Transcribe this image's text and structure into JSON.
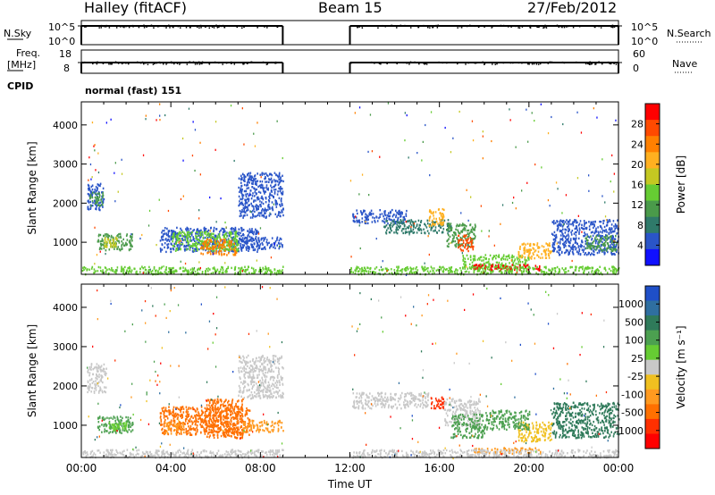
{
  "header": {
    "station": "Halley (fitACF)",
    "beam": "Beam 15",
    "date": "27/Feb/2012"
  },
  "strip_labels": {
    "nsky": "N.Sky",
    "nsky_ticks": [
      "10^5",
      "10^0"
    ],
    "nsearch": "N.Search",
    "nsearch_ticks": [
      "10^5",
      "10^0"
    ],
    "freq_line1": "Freq.",
    "freq_line2": "[MHz]",
    "freq_ticks": [
      "18",
      "8"
    ],
    "nave": "Nave",
    "nave_ticks": [
      "60",
      "0"
    ],
    "cpid": "CPID",
    "cpid_text": "normal (fast) 151"
  },
  "chart_data": [
    {
      "type": "heatmap",
      "name_panel": "power",
      "ylabel": "Slant Range [km]",
      "xlabel": "",
      "ylim": [
        180,
        4590
      ],
      "yticks": [
        1000,
        2000,
        3000,
        4000
      ],
      "colorbar_label": "Power [dB]",
      "colorbar_ticks": [
        "4",
        "8",
        "12",
        "16",
        "20",
        "24",
        "28"
      ],
      "colorbar_colors": [
        "#1010ff",
        "#2a55c8",
        "#2f7a6a",
        "#4a9a4a",
        "#66cc33",
        "#c4c822",
        "#ffb020",
        "#ff8000",
        "#ff4a00",
        "#ff0000"
      ],
      "scatter_patches": [
        {
          "t": [
            0.25,
            1.0
          ],
          "r": [
            1850,
            2550
          ],
          "color": "#2a55c8"
        },
        {
          "t": [
            0.35,
            0.95
          ],
          "r": [
            1950,
            2300
          ],
          "color": "#4a9a4a"
        },
        {
          "t": [
            0.7,
            2.3
          ],
          "r": [
            820,
            1250
          ],
          "color": "#4a9a4a"
        },
        {
          "t": [
            1.0,
            1.6
          ],
          "r": [
            900,
            1150
          ],
          "color": "#c4c822"
        },
        {
          "t": [
            3.5,
            7.9
          ],
          "r": [
            780,
            1400
          ],
          "color": "#2a55c8"
        },
        {
          "t": [
            4.0,
            7.0
          ],
          "r": [
            800,
            1300
          ],
          "color": "#66cc33"
        },
        {
          "t": [
            5.3,
            6.9
          ],
          "r": [
            700,
            1100
          ],
          "color": "#ff8000"
        },
        {
          "t": [
            7.0,
            9.0
          ],
          "r": [
            850,
            1150
          ],
          "color": "#2a55c8"
        },
        {
          "t": [
            7.0,
            9.0
          ],
          "r": [
            1650,
            2800
          ],
          "color": "#2a55c8"
        },
        {
          "t": [
            12.1,
            14.5
          ],
          "r": [
            1500,
            1850
          ],
          "color": "#2a55c8"
        },
        {
          "t": [
            13.5,
            16.5
          ],
          "r": [
            1250,
            1600
          ],
          "color": "#2f7a6a"
        },
        {
          "t": [
            15.5,
            16.2
          ],
          "r": [
            1450,
            1900
          ],
          "color": "#ffb020"
        },
        {
          "t": [
            16.3,
            17.6
          ],
          "r": [
            900,
            1500
          ],
          "color": "#4a9a4a"
        },
        {
          "t": [
            16.8,
            17.5
          ],
          "r": [
            800,
            1200
          ],
          "color": "#ff4a00"
        },
        {
          "t": [
            17.0,
            20.0
          ],
          "r": [
            350,
            700
          ],
          "color": "#66cc33"
        },
        {
          "t": [
            17.5,
            20.5
          ],
          "r": [
            300,
            450
          ],
          "color": "#ff0000"
        },
        {
          "t": [
            19.5,
            21.0
          ],
          "r": [
            600,
            1000
          ],
          "color": "#ffb020"
        },
        {
          "t": [
            21.0,
            24.0
          ],
          "r": [
            700,
            1600
          ],
          "color": "#2a55c8"
        },
        {
          "t": [
            22.5,
            23.9
          ],
          "r": [
            800,
            1200
          ],
          "color": "#4a9a4a"
        },
        {
          "t": [
            0.0,
            9.0
          ],
          "r": [
            200,
            400
          ],
          "color": "#66cc33"
        },
        {
          "t": [
            12.0,
            24.0
          ],
          "r": [
            200,
            400
          ],
          "color": "#66cc33"
        }
      ]
    },
    {
      "type": "heatmap",
      "name_panel": "velocity",
      "ylabel": "Slant Range [km]",
      "xlabel": "Time UT",
      "ylim": [
        180,
        4590
      ],
      "yticks": [
        1000,
        2000,
        3000,
        4000
      ],
      "xticks": [
        "00:00",
        "04:00",
        "08:00",
        "12:00",
        "16:00",
        "20:00",
        "00:00"
      ],
      "colorbar_label": "Velocity [m s⁻¹]",
      "colorbar_ticks": [
        "1000",
        "500",
        "100",
        "25",
        "-25",
        "-100",
        "-500",
        "-1000"
      ],
      "colorbar_colors": [
        "#1f4fc8",
        "#2f6fa0",
        "#2f7a5a",
        "#4ca050",
        "#66cc33",
        "#c8c8c8",
        "#f0c020",
        "#ff9a20",
        "#ff7000",
        "#ff3000",
        "#ff0000"
      ],
      "scatter_patches": [
        {
          "t": [
            0.25,
            1.1
          ],
          "r": [
            1850,
            2600
          ],
          "color": "#c8c8c8"
        },
        {
          "t": [
            0.7,
            2.3
          ],
          "r": [
            820,
            1250
          ],
          "color": "#4ca050"
        },
        {
          "t": [
            1.2,
            2.0
          ],
          "r": [
            900,
            1100
          ],
          "color": "#66cc33"
        },
        {
          "t": [
            3.5,
            7.5
          ],
          "r": [
            780,
            1500
          ],
          "color": "#ff7000"
        },
        {
          "t": [
            3.7,
            4.6
          ],
          "r": [
            800,
            1100
          ],
          "color": "#ff9a20"
        },
        {
          "t": [
            5.5,
            7.2
          ],
          "r": [
            700,
            1700
          ],
          "color": "#ff7000"
        },
        {
          "t": [
            7.2,
            9.0
          ],
          "r": [
            850,
            1150
          ],
          "color": "#ff9a20"
        },
        {
          "t": [
            7.0,
            9.0
          ],
          "r": [
            1700,
            2800
          ],
          "color": "#c8c8c8"
        },
        {
          "t": [
            12.1,
            15.5
          ],
          "r": [
            1450,
            1850
          ],
          "color": "#c8c8c8"
        },
        {
          "t": [
            15.6,
            16.2
          ],
          "r": [
            1450,
            1750
          ],
          "color": "#ff3000"
        },
        {
          "t": [
            16.2,
            17.8
          ],
          "r": [
            1000,
            1700
          ],
          "color": "#c8c8c8"
        },
        {
          "t": [
            16.5,
            18.0
          ],
          "r": [
            700,
            1300
          ],
          "color": "#4ca050"
        },
        {
          "t": [
            17.5,
            20.5
          ],
          "r": [
            300,
            450
          ],
          "color": "#ff9a20"
        },
        {
          "t": [
            19.5,
            21.0
          ],
          "r": [
            600,
            1100
          ],
          "color": "#f0c020"
        },
        {
          "t": [
            21.0,
            24.0
          ],
          "r": [
            700,
            1600
          ],
          "color": "#2f7a5a"
        },
        {
          "t": [
            18.0,
            20.0
          ],
          "r": [
            900,
            1400
          ],
          "color": "#4ca050"
        },
        {
          "t": [
            0.0,
            9.0
          ],
          "r": [
            200,
            400
          ],
          "color": "#c8c8c8"
        },
        {
          "t": [
            12.0,
            24.0
          ],
          "r": [
            200,
            400
          ],
          "color": "#c8c8c8"
        }
      ]
    }
  ],
  "data_gap_hours": [
    9.0,
    12.0
  ]
}
